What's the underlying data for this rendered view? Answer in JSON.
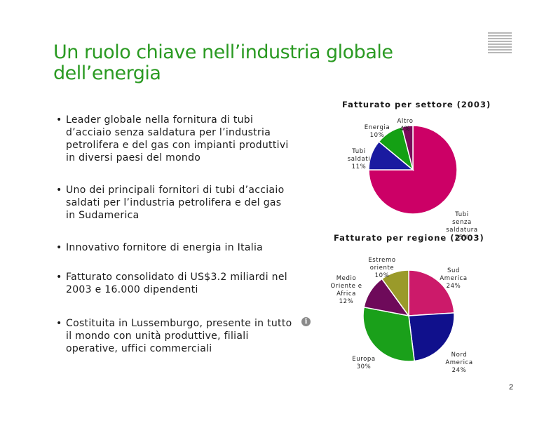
{
  "title": "Un ruolo chiave nell’industria globale dell’energia",
  "page_number": "2",
  "bullets": [
    "Leader globale nella fornitura di tubi d’acciaio senza saldatura per l’industria petrolifera e del gas con impianti produttivi in diversi paesi del mondo",
    "Uno dei principali fornitori di tubi d’acciaio saldati per l’industria petrolifera e del gas in Sudamerica",
    "Innovativo fornitore di energia in Italia",
    "Fatturato consolidato di US$3.2 miliardi nel 2003 e 16.000 dipendenti",
    "Costituita in Lussemburgo, presente in tutto il mondo con unità produttive, filiali operative, uffici commerciali"
  ],
  "info_icon": "info-icon",
  "chart_data": [
    {
      "type": "pie",
      "title": "Fatturato per settore (2003)",
      "categories": [
        "Tubi senza saldatura",
        "Tubi saldati",
        "Energia",
        "Altro"
      ],
      "values": [
        75,
        11,
        10,
        4
      ],
      "labels": [
        "Tubi\nsenza\nsaldatura",
        "Tubi\nsaldati",
        "Energia",
        "Altro"
      ],
      "pct_labels": [
        "75%",
        "11%",
        "10%",
        "4%"
      ],
      "colors": [
        "#cc0066",
        "#1a1aa0",
        "#14a014",
        "#7a0a5a"
      ]
    },
    {
      "type": "pie",
      "title": "Fatturato per regione (2003)",
      "categories": [
        "Sud America",
        "Nord America",
        "Europa",
        "Medio Oriente e Africa",
        "Estremo oriente"
      ],
      "values": [
        24,
        24,
        30,
        12,
        10
      ],
      "labels": [
        "Sud\nAmerica",
        "Nord\nAmerica",
        "Europa",
        "Medio\nOriente e\nAfrica",
        "Estremo\noriente"
      ],
      "pct_labels": [
        "24%",
        "24%",
        "30%",
        "12%",
        "10%"
      ],
      "colors": [
        "#cc1a6a",
        "#10108c",
        "#1aa01a",
        "#6e0a5a",
        "#9a9a2a"
      ]
    }
  ]
}
